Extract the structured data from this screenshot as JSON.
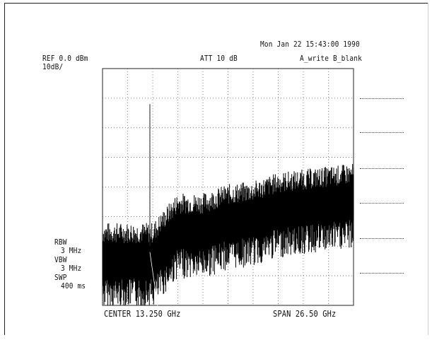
{
  "header": {
    "timestamp": "Mon Jan 22 15:43:00 1990",
    "ref_level": "REF 0.0 dBm",
    "scale": "10dB/",
    "attenuation": "ATT 10 dB",
    "trace_mode": "A_write B_blank"
  },
  "settings": {
    "rbw_label": "RBW",
    "rbw_value": "3 MHz",
    "vbw_label": "VBW",
    "vbw_value": "3 MHz",
    "swp_label": "SWP",
    "swp_value": "400 ms"
  },
  "footer": {
    "center": "CENTER 13.250 GHz",
    "span": "SPAN 26.50 GHz"
  },
  "chart_data": {
    "type": "line",
    "title": "",
    "xlabel": "",
    "ylabel": "",
    "x_range_ghz": [
      0,
      26.5
    ],
    "y_range_db": [
      -80,
      0
    ],
    "grid": true,
    "grid_divisions": {
      "x": 10,
      "y": 8
    },
    "series": [
      {
        "x": [
          0,
          2.65,
          5.3,
          7.9,
          10.6,
          13.25,
          15.9,
          18.55,
          21.2,
          23.85,
          26.5
        ],
        "values": [
          -60,
          -60,
          -60,
          -50,
          -50,
          -47,
          -46,
          -43,
          -42,
          -41,
          -40
        ]
      }
    ],
    "marker": {
      "x": 5.0,
      "y": -12
    }
  }
}
